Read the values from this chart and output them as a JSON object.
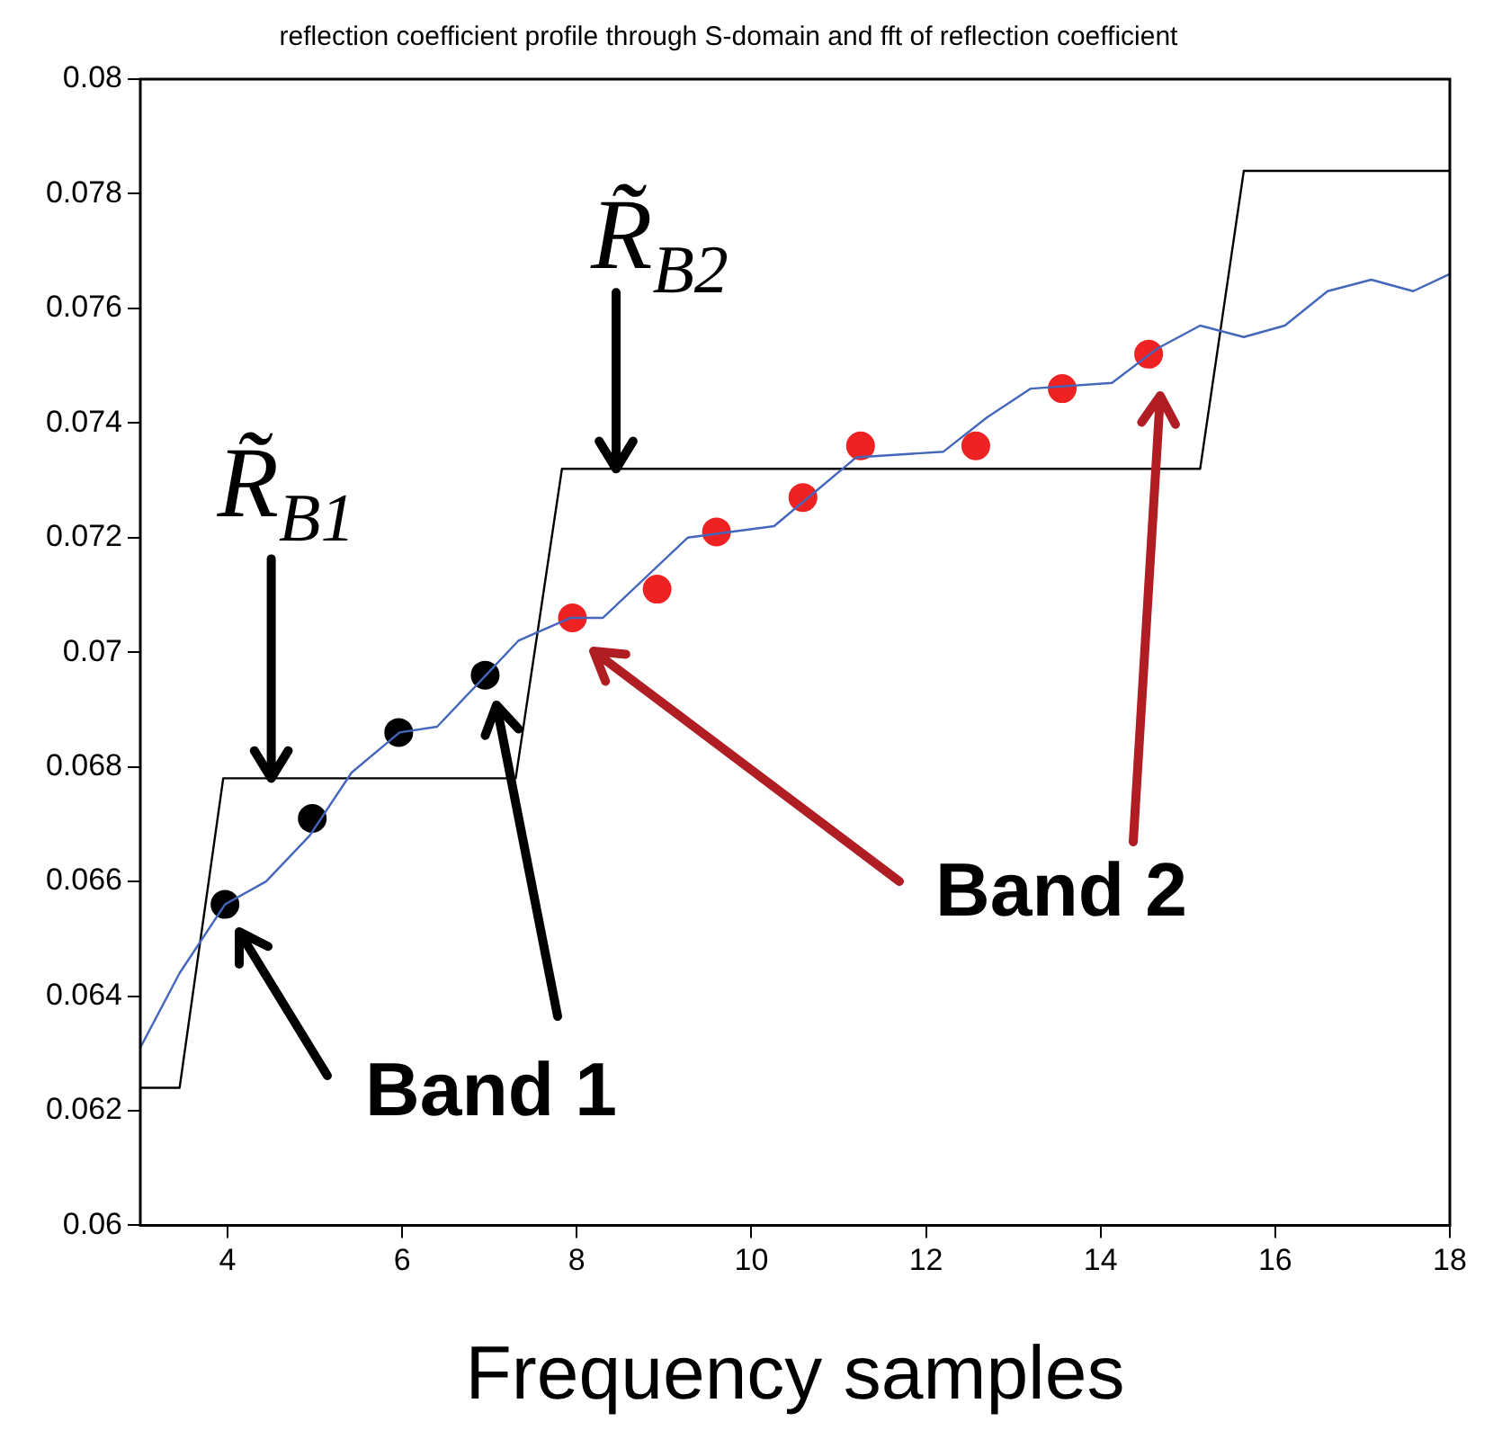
{
  "chart_data": {
    "type": "line",
    "title": "reflection coefficient profile through S-domain and fft of reflection coefficient",
    "xlabel": "Frequency samples",
    "xlim": [
      3,
      18
    ],
    "xticks": [
      4,
      6,
      8,
      10,
      12,
      14,
      16,
      18
    ],
    "ylim": [
      0.06,
      0.08
    ],
    "yticks": [
      0.06,
      0.062,
      0.064,
      0.066,
      0.068,
      0.07,
      0.072,
      0.074,
      0.076,
      0.078,
      0.08
    ],
    "grid": false,
    "legend": false,
    "marker": "none",
    "series": [
      {
        "color": "#4466bb",
        "x": [
          3,
          3.45,
          3.97,
          4.44,
          4.94,
          5.42,
          5.97,
          6.4,
          6.96,
          7.33,
          7.93,
          8.3,
          9.27,
          10.26,
          11.2,
          12.2,
          12.7,
          13.2,
          14.13,
          14.65,
          15.14,
          15.64,
          16.11,
          16.6,
          17.1,
          17.58,
          18
        ],
        "values": [
          0.0631,
          0.0644,
          0.0656,
          0.066,
          0.0668,
          0.0679,
          0.0686,
          0.0687,
          0.0696,
          0.0702,
          0.0706,
          0.0706,
          0.072,
          0.0722,
          0.0734,
          0.0735,
          0.0741,
          0.0746,
          0.0747,
          0.0753,
          0.0757,
          0.0755,
          0.0757,
          0.0763,
          0.0765,
          0.0763,
          0.0766
        ]
      },
      {
        "color": "#000000",
        "x": [
          3,
          3.45,
          3.95,
          7.3,
          7.83,
          15.14,
          15.64,
          18
        ],
        "values": [
          0.0624,
          0.0624,
          0.0678,
          0.0678,
          0.0732,
          0.0732,
          0.0784,
          0.0784
        ]
      },
      {
        "type": "scatter",
        "color": "#000000",
        "marker": "circle",
        "x": [
          3.97,
          4.97,
          5.96,
          6.95
        ],
        "values": [
          0.0656,
          0.0671,
          0.0686,
          0.0696
        ]
      },
      {
        "type": "scatter",
        "color": "#ee2222",
        "marker": "circle",
        "x": [
          7.95,
          8.92,
          9.6,
          10.59,
          11.25,
          12.57,
          13.56,
          14.55
        ],
        "values": [
          0.0706,
          0.0711,
          0.0721,
          0.0727,
          0.0736,
          0.0736,
          0.0746,
          0.0752
        ]
      }
    ],
    "annotations": [
      {
        "text": "R̃$_{B1}$",
        "x": 4.5,
        "y": 0.0678
      },
      {
        "text": "R̃$_{B2}$",
        "x": 8.45,
        "y": 0.0732
      },
      "Band 1",
      "Band 2"
    ]
  }
}
